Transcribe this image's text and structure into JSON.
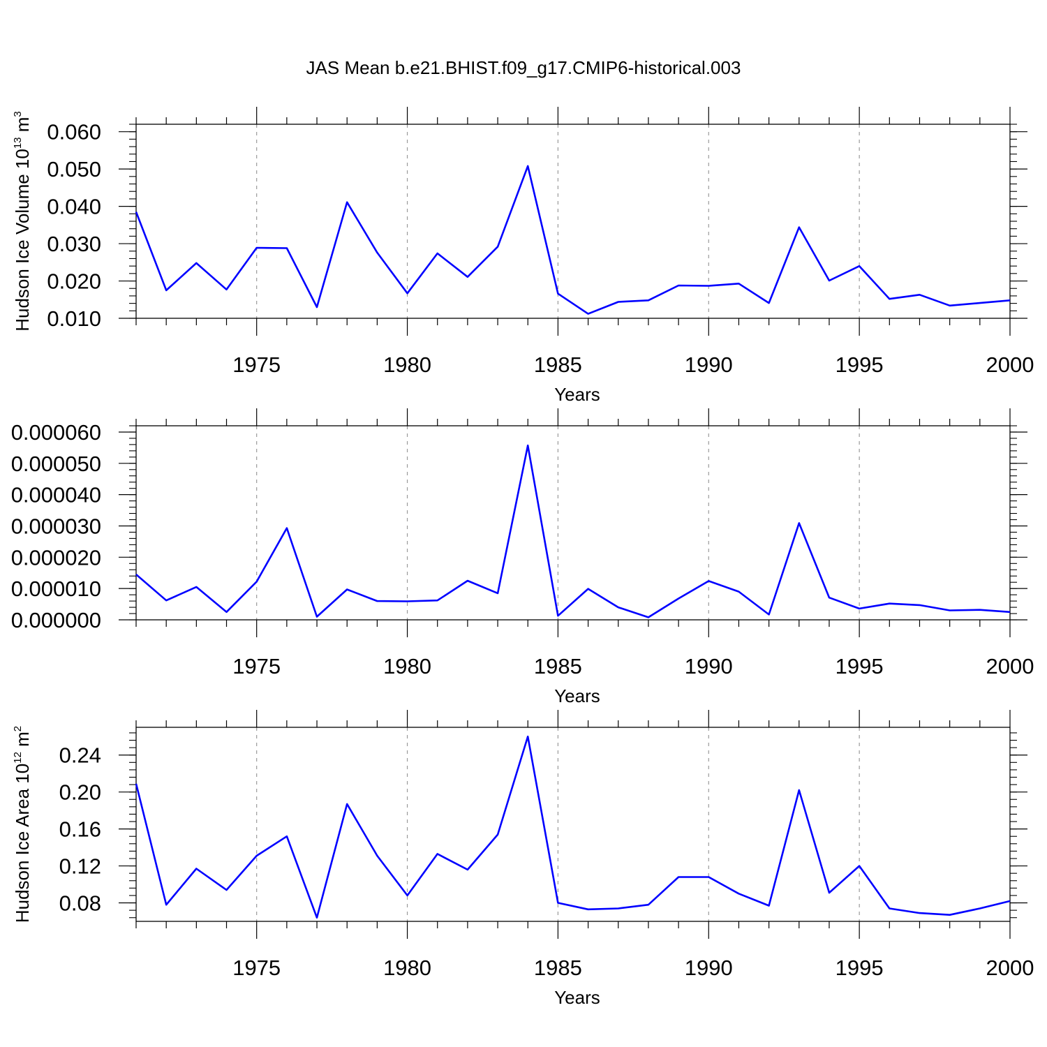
{
  "title": "JAS Mean b.e21.BHIST.f09_g17.CMIP6-historical.003",
  "colors": {
    "line": "#0000ff",
    "axis": "#000000",
    "grid": "#999999"
  },
  "chart_data": [
    {
      "type": "line",
      "title": "JAS Mean b.e21.BHIST.f09_g17.CMIP6-historical.003",
      "ylabel": {
        "text": "Hudson Ice Volume 10",
        "sup": "13",
        "unit": " m",
        "unit_sup": "3"
      },
      "xlabel": "Years",
      "xlim": [
        1971,
        2000
      ],
      "ylim": [
        0.01,
        0.062
      ],
      "yticks": [
        0.01,
        0.02,
        0.03,
        0.04,
        0.05,
        0.06
      ],
      "ytick_labels": [
        "0.010",
        "0.020",
        "0.030",
        "0.040",
        "0.050",
        "0.060"
      ],
      "xticks": [
        1975,
        1980,
        1985,
        1990,
        1995,
        2000
      ],
      "xtick_labels": [
        "1975",
        "1980",
        "1985",
        "1990",
        "1995",
        "2000"
      ],
      "grid": "x-dashed",
      "x": [
        1971,
        1972,
        1973,
        1974,
        1975,
        1976,
        1977,
        1978,
        1979,
        1980,
        1981,
        1982,
        1983,
        1984,
        1985,
        1986,
        1987,
        1988,
        1989,
        1990,
        1991,
        1992,
        1993,
        1994,
        1995,
        1996,
        1997,
        1998,
        1999,
        2000
      ],
      "values": [
        0.0385,
        0.0175,
        0.0248,
        0.0177,
        0.0289,
        0.0288,
        0.013,
        0.0411,
        0.0276,
        0.0167,
        0.0274,
        0.0211,
        0.0292,
        0.0508,
        0.0166,
        0.0112,
        0.0144,
        0.0148,
        0.0188,
        0.0187,
        0.0193,
        0.0141,
        0.0344,
        0.0201,
        0.024,
        0.0152,
        0.0163,
        0.0134,
        0.0141,
        0.0148
      ]
    },
    {
      "type": "line",
      "ylabel": {
        "text": "",
        "sup": "",
        "unit": "",
        "unit_sup": ""
      },
      "xlabel": "Years",
      "xlim": [
        1971,
        2000
      ],
      "ylim": [
        0.0,
        6.2e-05
      ],
      "yticks": [
        0.0,
        1e-05,
        2e-05,
        3e-05,
        4e-05,
        5e-05,
        6e-05
      ],
      "ytick_labels": [
        "0.000000",
        "0.000010",
        "0.000020",
        "0.000030",
        "0.000040",
        "0.000050",
        "0.000060"
      ],
      "xticks": [
        1975,
        1980,
        1985,
        1990,
        1995,
        2000
      ],
      "xtick_labels": [
        "1975",
        "1980",
        "1985",
        "1990",
        "1995",
        "2000"
      ],
      "grid": "x-dashed",
      "x": [
        1971,
        1972,
        1973,
        1974,
        1975,
        1976,
        1977,
        1978,
        1979,
        1980,
        1981,
        1982,
        1983,
        1984,
        1985,
        1986,
        1987,
        1988,
        1989,
        1990,
        1991,
        1992,
        1993,
        1994,
        1995,
        1996,
        1997,
        1998,
        1999,
        2000
      ],
      "values": [
        1.45e-05,
        6.2e-06,
        1.05e-05,
        2.5e-06,
        1.22e-05,
        2.93e-05,
        1e-06,
        9.7e-06,
        6e-06,
        5.9e-06,
        6.2e-06,
        1.25e-05,
        8.5e-06,
        5.57e-05,
        1.3e-06,
        9.9e-06,
        4e-06,
        8e-07,
        6.8e-06,
        1.24e-05,
        9e-06,
        1.7e-06,
        3.09e-05,
        7.1e-06,
        3.6e-06,
        5.2e-06,
        4.7e-06,
        3e-06,
        3.2e-06,
        2.5e-06
      ]
    },
    {
      "type": "line",
      "ylabel": {
        "text": "Hudson Ice Area 10",
        "sup": "12",
        "unit": " m",
        "unit_sup": "2"
      },
      "xlabel": "Years",
      "xlim": [
        1971,
        2000
      ],
      "ylim": [
        0.06,
        0.27
      ],
      "yticks": [
        0.08,
        0.12,
        0.16,
        0.2,
        0.24
      ],
      "ytick_labels": [
        "0.08",
        "0.12",
        "0.16",
        "0.20",
        "0.24"
      ],
      "xticks": [
        1975,
        1980,
        1985,
        1990,
        1995,
        2000
      ],
      "xtick_labels": [
        "1975",
        "1980",
        "1985",
        "1990",
        "1995",
        "2000"
      ],
      "grid": "x-dashed",
      "x": [
        1971,
        1972,
        1973,
        1974,
        1975,
        1976,
        1977,
        1978,
        1979,
        1980,
        1981,
        1982,
        1983,
        1984,
        1985,
        1986,
        1987,
        1988,
        1989,
        1990,
        1991,
        1992,
        1993,
        1994,
        1995,
        1996,
        1997,
        1998,
        1999,
        2000
      ],
      "values": [
        0.209,
        0.078,
        0.117,
        0.094,
        0.131,
        0.152,
        0.064,
        0.187,
        0.131,
        0.088,
        0.133,
        0.116,
        0.154,
        0.26,
        0.08,
        0.073,
        0.074,
        0.078,
        0.108,
        0.108,
        0.09,
        0.077,
        0.202,
        0.091,
        0.12,
        0.074,
        0.069,
        0.067,
        0.074,
        0.082
      ]
    }
  ]
}
